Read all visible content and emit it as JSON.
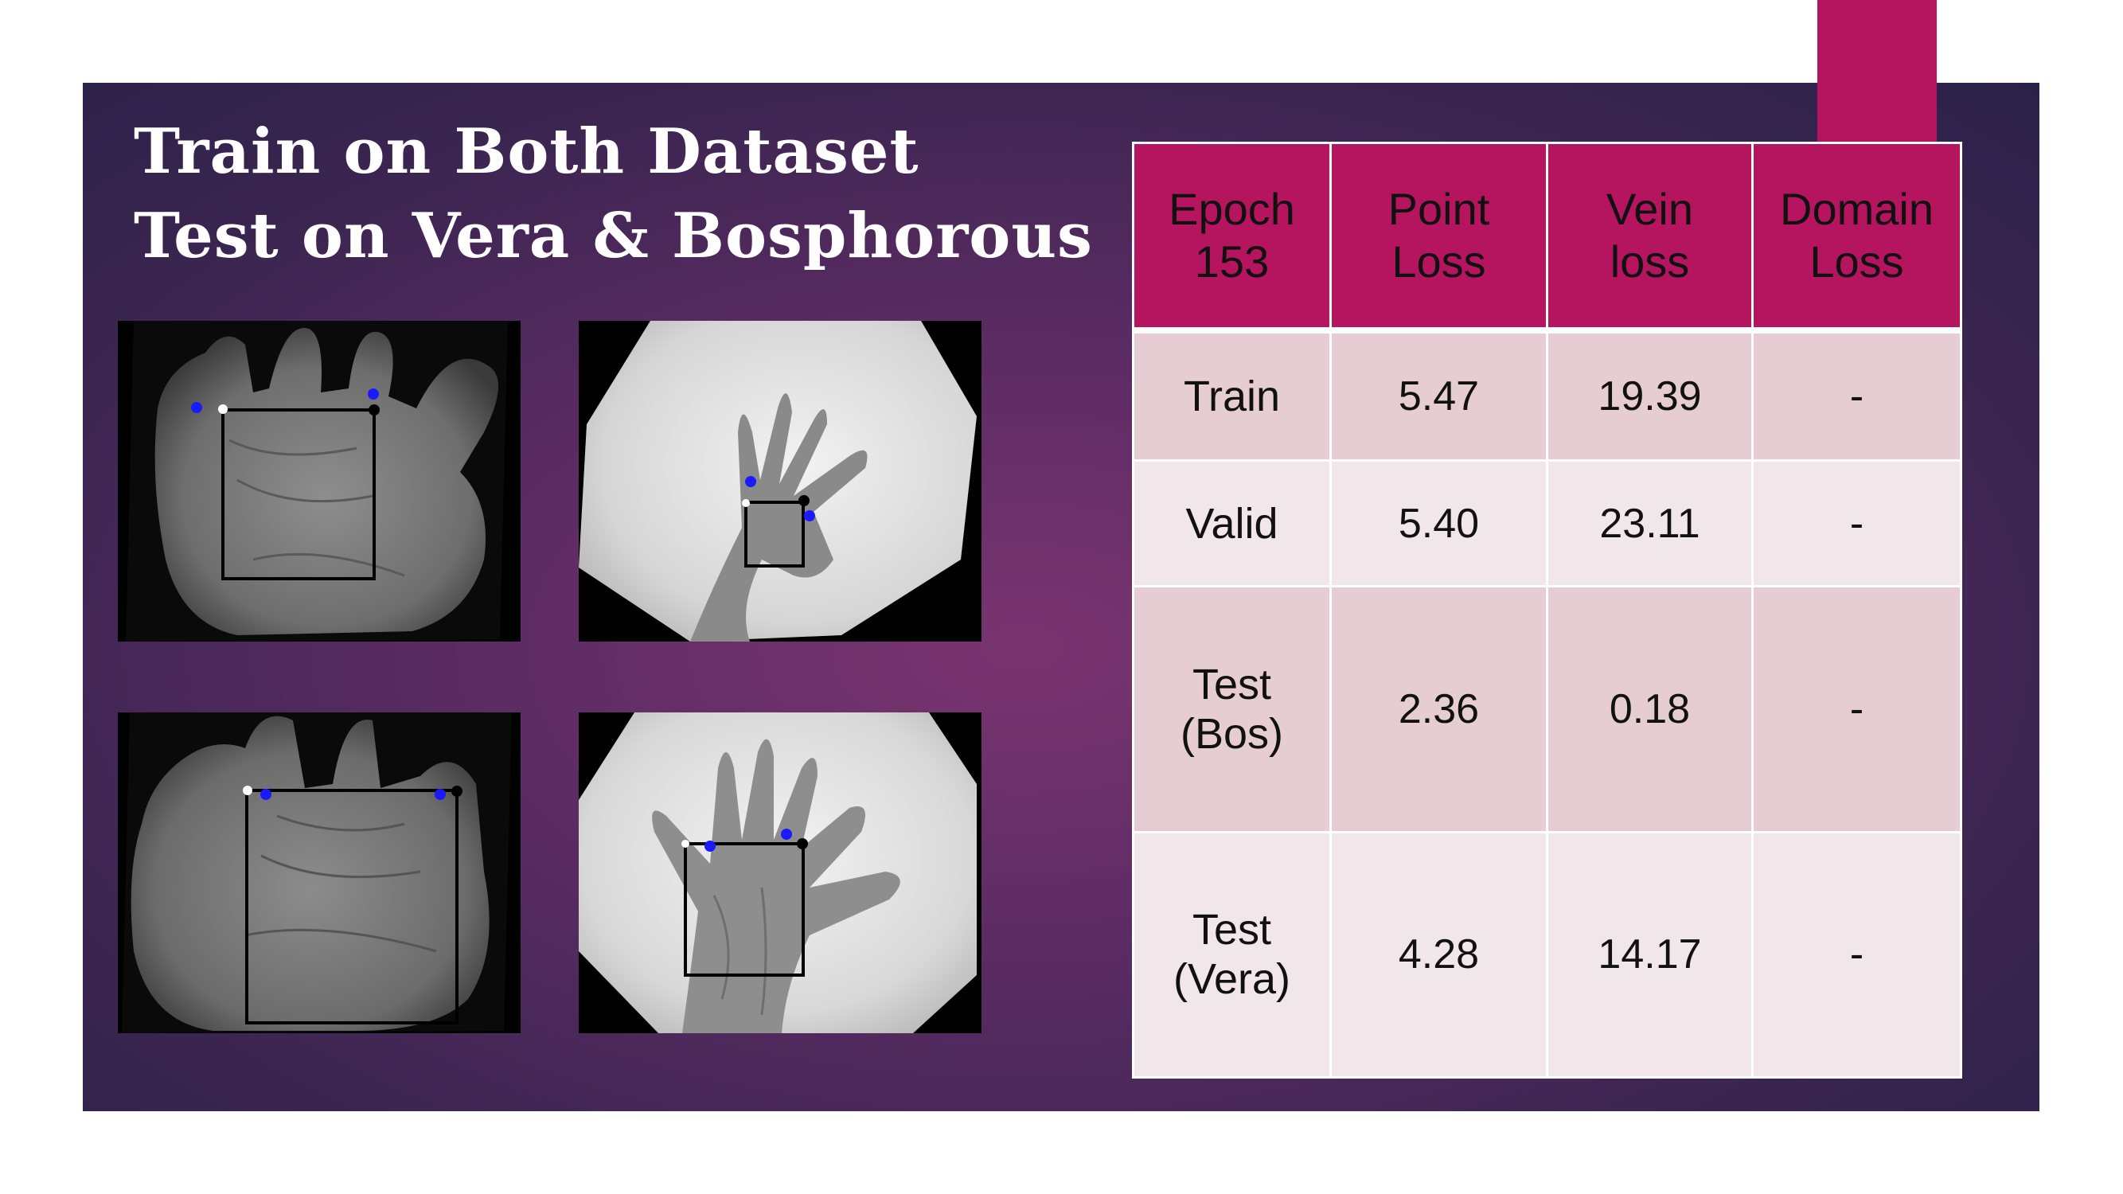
{
  "slide": {
    "title_lines": [
      "Train on Both Dataset",
      "Test on Vera & Bosphorous"
    ],
    "colors": {
      "panel": "#5a2b63",
      "accent": "#b5145f",
      "header_cell": "#b5145f",
      "row_dark": "#e6cdd4",
      "row_light": "#f1e6ea"
    }
  },
  "images": [
    {
      "name": "hand-image-top-left",
      "icon": "palm-vein-image"
    },
    {
      "name": "hand-image-top-right",
      "icon": "hand-xray-image"
    },
    {
      "name": "hand-image-bottom-left",
      "icon": "palm-vein-image"
    },
    {
      "name": "hand-image-bottom-right",
      "icon": "hand-xray-image"
    }
  ],
  "table": {
    "headers": [
      [
        "Epoch",
        "153"
      ],
      [
        "Point",
        "Loss"
      ],
      [
        "Vein",
        "loss"
      ],
      [
        "Domain",
        "Loss"
      ]
    ],
    "rows": [
      {
        "label": [
          "Train"
        ],
        "point": "5.47",
        "vein": "19.39",
        "domain": "-"
      },
      {
        "label": [
          "Valid"
        ],
        "point": "5.40",
        "vein": "23.11",
        "domain": "-"
      },
      {
        "label": [
          "Test",
          "(Bos)"
        ],
        "point": "2.36",
        "vein": "0.18",
        "domain": "-"
      },
      {
        "label": [
          "Test",
          "(Vera)"
        ],
        "point": "4.28",
        "vein": "14.17",
        "domain": "-"
      }
    ]
  }
}
